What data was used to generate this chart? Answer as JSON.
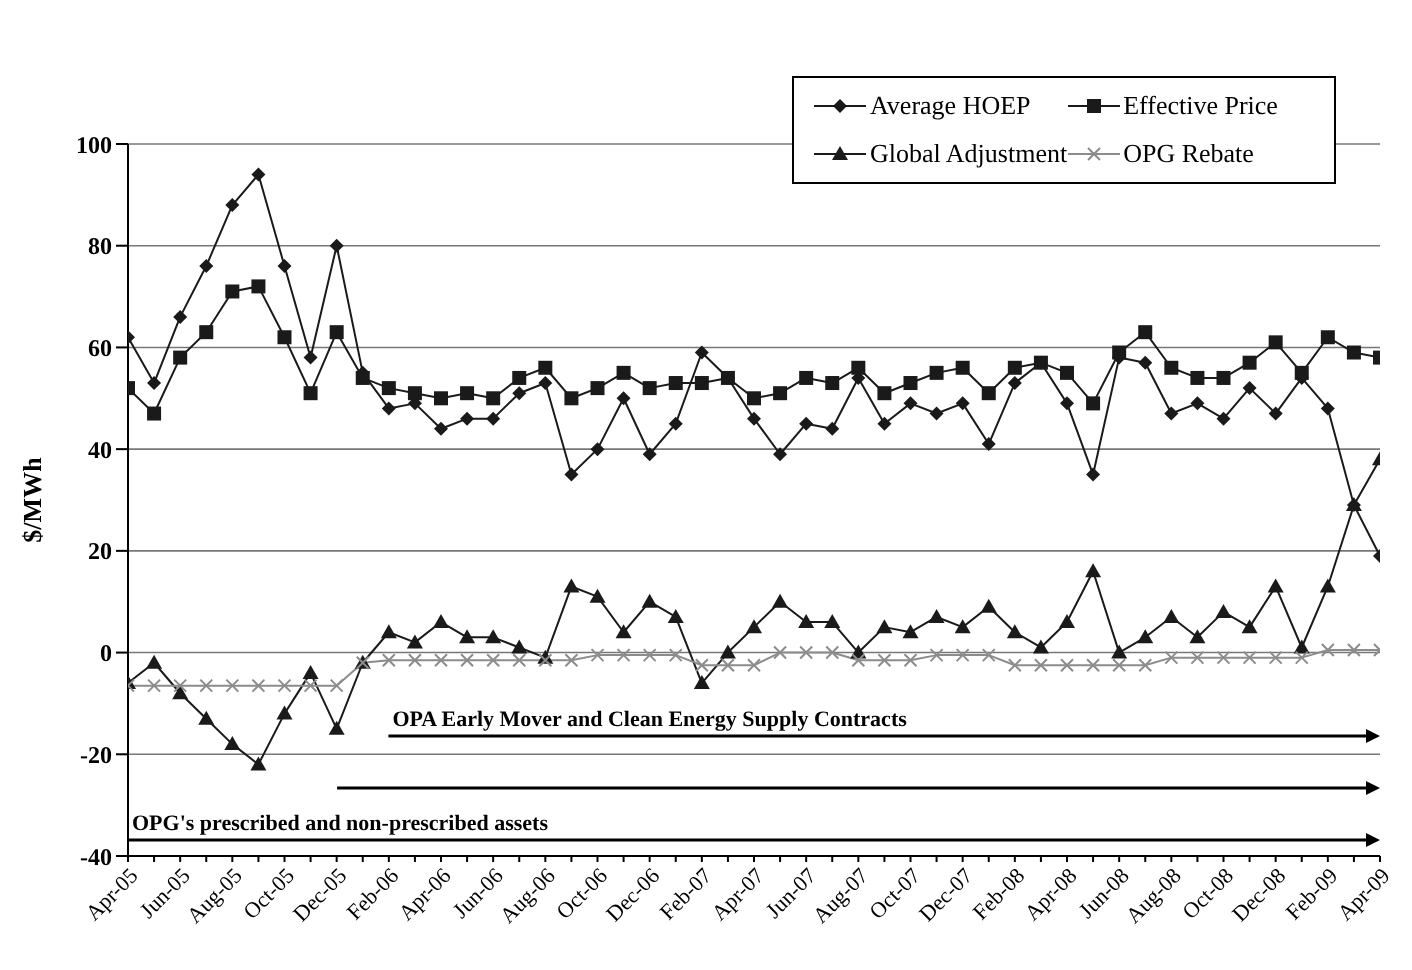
{
  "chart_data": {
    "type": "line",
    "ylabel": "$/MWh",
    "categories": [
      "Apr-05",
      null,
      "Jun-05",
      null,
      "Aug-05",
      null,
      "Oct-05",
      null,
      "Dec-05",
      null,
      "Feb-06",
      null,
      "Apr-06",
      null,
      "Jun-06",
      null,
      "Aug-06",
      null,
      "Oct-06",
      null,
      "Dec-06",
      null,
      "Feb-07",
      null,
      "Apr-07",
      null,
      "Jun-07",
      null,
      "Aug-07",
      null,
      "Oct-07",
      null,
      "Dec-07",
      null,
      "Feb-08",
      null,
      "Apr-08",
      null,
      "Jun-08",
      null,
      "Aug-08",
      null,
      "Oct-08",
      null,
      "Dec-08",
      null,
      "Feb-09",
      null,
      "Apr-09"
    ],
    "series": [
      {
        "name": "Average HOEP",
        "color": "#1a1a1a",
        "marker": "diamond",
        "values": [
          62,
          53,
          66,
          76,
          88,
          94,
          76,
          58,
          80,
          55,
          48,
          49,
          44,
          46,
          46,
          51,
          53,
          35,
          40,
          50,
          39,
          45,
          59,
          54,
          46,
          39,
          45,
          44,
          54,
          45,
          49,
          47,
          49,
          41,
          53,
          57,
          49,
          35,
          58,
          57,
          47,
          49,
          46,
          52,
          47,
          54,
          48,
          29,
          19
        ]
      },
      {
        "name": "Effective Price",
        "color": "#1a1a1a",
        "marker": "square",
        "values": [
          52,
          47,
          58,
          63,
          71,
          72,
          62,
          51,
          63,
          54,
          52,
          51,
          50,
          51,
          50,
          54,
          56,
          50,
          52,
          55,
          52,
          53,
          53,
          54,
          50,
          51,
          54,
          53,
          56,
          51,
          53,
          55,
          56,
          51,
          56,
          57,
          55,
          49,
          59,
          63,
          56,
          54,
          54,
          57,
          61,
          55,
          62,
          59,
          58
        ]
      },
      {
        "name": "Global Adjustment",
        "color": "#1a1a1a",
        "marker": "triangle",
        "values": [
          -6,
          -2,
          -8,
          -13,
          -18,
          -22,
          -12,
          -4,
          -15,
          -2,
          4,
          2,
          6,
          3,
          3,
          1,
          -1,
          13,
          11,
          4,
          10,
          7,
          -6,
          0,
          5,
          10,
          6,
          6,
          0,
          5,
          4,
          7,
          5,
          9,
          4,
          1,
          6,
          16,
          0,
          3,
          7,
          3,
          8,
          5,
          13,
          1,
          13,
          29,
          38
        ]
      },
      {
        "name": "OPG Rebate",
        "color": "#8c8c8c",
        "marker": "cross",
        "values": [
          -6.5,
          -6.5,
          -6.5,
          -6.5,
          -6.5,
          -6.5,
          -6.5,
          -6.5,
          -6.5,
          -2,
          -1.5,
          -1.5,
          -1.5,
          -1.5,
          -1.5,
          -1.5,
          -1.5,
          -1.5,
          -0.5,
          -0.5,
          -0.5,
          -0.5,
          -2.5,
          -2.5,
          -2.5,
          0,
          0,
          0,
          -1.5,
          -1.5,
          -1.5,
          -0.5,
          -0.5,
          -0.5,
          -2.5,
          -2.5,
          -2.5,
          -2.5,
          -2.5,
          -2.5,
          -1,
          -1,
          -1,
          -1,
          -1,
          -1,
          0.5,
          0.5,
          0.5
        ]
      }
    ],
    "ylim": [
      -40,
      100
    ],
    "yticks": [
      -40,
      -20,
      0,
      20,
      40,
      60,
      80,
      100
    ],
    "grid": "y",
    "legend": "top right",
    "annotations": [
      "OPA Early Mover and Clean Energy Supply Contracts",
      "OPG's prescribed and non-prescribed assets"
    ]
  }
}
